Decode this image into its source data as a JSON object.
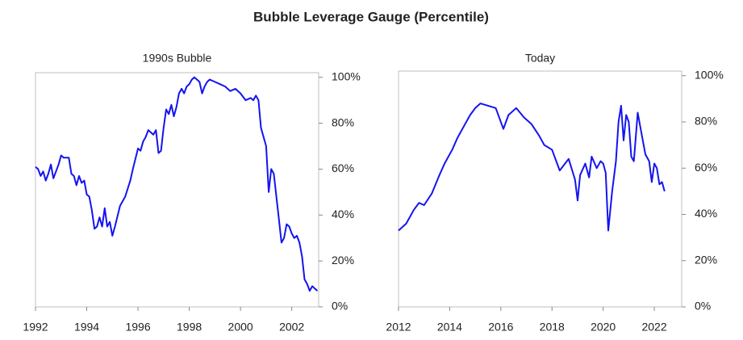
{
  "title": "Bubble Leverage Gauge (Percentile)",
  "chart_data": [
    {
      "type": "line",
      "title": "1990s Bubble",
      "color": "#1414f0",
      "x": [
        1992.0,
        1992.1,
        1992.2,
        1992.3,
        1992.4,
        1992.5,
        1992.6,
        1992.7,
        1992.8,
        1992.9,
        1993.0,
        1993.1,
        1993.3,
        1993.4,
        1993.5,
        1993.6,
        1993.7,
        1993.8,
        1993.9,
        1994.0,
        1994.1,
        1994.2,
        1994.3,
        1994.4,
        1994.5,
        1994.6,
        1994.7,
        1994.8,
        1994.9,
        1995.0,
        1995.1,
        1995.3,
        1995.5,
        1995.7,
        1995.8,
        1996.0,
        1996.1,
        1996.2,
        1996.3,
        1996.4,
        1996.5,
        1996.6,
        1996.7,
        1996.8,
        1996.9,
        1997.0,
        1997.1,
        1997.2,
        1997.3,
        1997.4,
        1997.5,
        1997.6,
        1997.7,
        1997.8,
        1997.9,
        1998.0,
        1998.1,
        1998.2,
        1998.3,
        1998.4,
        1998.5,
        1998.6,
        1998.7,
        1998.8,
        1999.0,
        1999.2,
        1999.4,
        1999.6,
        1999.8,
        2000.0,
        2000.2,
        2000.4,
        2000.5,
        2000.6,
        2000.7,
        2000.8,
        2000.9,
        2001.0,
        2001.1,
        2001.2,
        2001.3,
        2001.4,
        2001.5,
        2001.6,
        2001.7,
        2001.8,
        2001.9,
        2002.0,
        2002.1,
        2002.2,
        2002.3,
        2002.4,
        2002.5,
        2002.6,
        2002.7,
        2002.8,
        2002.9,
        2003.0
      ],
      "values": [
        61,
        60,
        57,
        59,
        55,
        58,
        62,
        56,
        59,
        62,
        66,
        65,
        65,
        58,
        57,
        53,
        57,
        54,
        55,
        49,
        48,
        42,
        34,
        35,
        39,
        35,
        43,
        35,
        37,
        31,
        35,
        44,
        48,
        55,
        60,
        69,
        68,
        72,
        74,
        77,
        76,
        75,
        77,
        67,
        68,
        78,
        86,
        84,
        88,
        83,
        87,
        93,
        95,
        93,
        96,
        97,
        99,
        100,
        99,
        98,
        93,
        96,
        98,
        99,
        98,
        97,
        96,
        94,
        95,
        93,
        90,
        91,
        90,
        92,
        90,
        78,
        74,
        70,
        50,
        60,
        58,
        48,
        38,
        28,
        30,
        36,
        35,
        32,
        30,
        31,
        28,
        22,
        12,
        10,
        7,
        9,
        8,
        7
      ],
      "xlim": [
        1992,
        2003.05
      ],
      "xticks": [
        1992,
        1994,
        1996,
        1998,
        2000,
        2002
      ],
      "ylim": [
        0,
        102
      ],
      "yticks": [
        {
          "value": 0,
          "label": "0%"
        },
        {
          "value": 20,
          "label": "20%"
        },
        {
          "value": 40,
          "label": "40%"
        },
        {
          "value": 60,
          "label": "60%"
        },
        {
          "value": 80,
          "label": "80%"
        },
        {
          "value": 100,
          "label": "100%"
        }
      ]
    },
    {
      "type": "line",
      "title": "Today",
      "color": "#1414f0",
      "x": [
        2012.0,
        2012.3,
        2012.6,
        2012.8,
        2013.0,
        2013.3,
        2013.6,
        2013.8,
        2014.1,
        2014.3,
        2014.6,
        2014.8,
        2015.0,
        2015.2,
        2015.5,
        2015.8,
        2016.1,
        2016.3,
        2016.6,
        2016.9,
        2017.2,
        2017.5,
        2017.7,
        2018.0,
        2018.3,
        2018.65,
        2018.9,
        2019.0,
        2019.1,
        2019.3,
        2019.45,
        2019.55,
        2019.75,
        2019.9,
        2020.0,
        2020.1,
        2020.2,
        2020.35,
        2020.5,
        2020.6,
        2020.7,
        2020.8,
        2020.9,
        2021.0,
        2021.1,
        2021.2,
        2021.35,
        2021.5,
        2021.65,
        2021.8,
        2021.9,
        2022.0,
        2022.1,
        2022.2,
        2022.3,
        2022.4
      ],
      "values": [
        33,
        36,
        42,
        45,
        44,
        49,
        57,
        62,
        68,
        73,
        79,
        83,
        86,
        88,
        87,
        86,
        77,
        83,
        86,
        82,
        79,
        74,
        70,
        68,
        59,
        64,
        55,
        46,
        57,
        62,
        56,
        65,
        60,
        63,
        62,
        58,
        33,
        50,
        63,
        80,
        87,
        72,
        83,
        80,
        65,
        63,
        84,
        75,
        66,
        63,
        54,
        62,
        60,
        53,
        54,
        50
      ],
      "xlim": [
        2012,
        2023.07
      ],
      "xticks": [
        2012,
        2014,
        2016,
        2018,
        2020,
        2022
      ],
      "ylim": [
        0,
        102
      ],
      "yticks": [
        {
          "value": 0,
          "label": "0%"
        },
        {
          "value": 20,
          "label": "20%"
        },
        {
          "value": 40,
          "label": "40%"
        },
        {
          "value": 60,
          "label": "60%"
        },
        {
          "value": 80,
          "label": "80%"
        },
        {
          "value": 100,
          "label": "100%"
        }
      ]
    }
  ]
}
